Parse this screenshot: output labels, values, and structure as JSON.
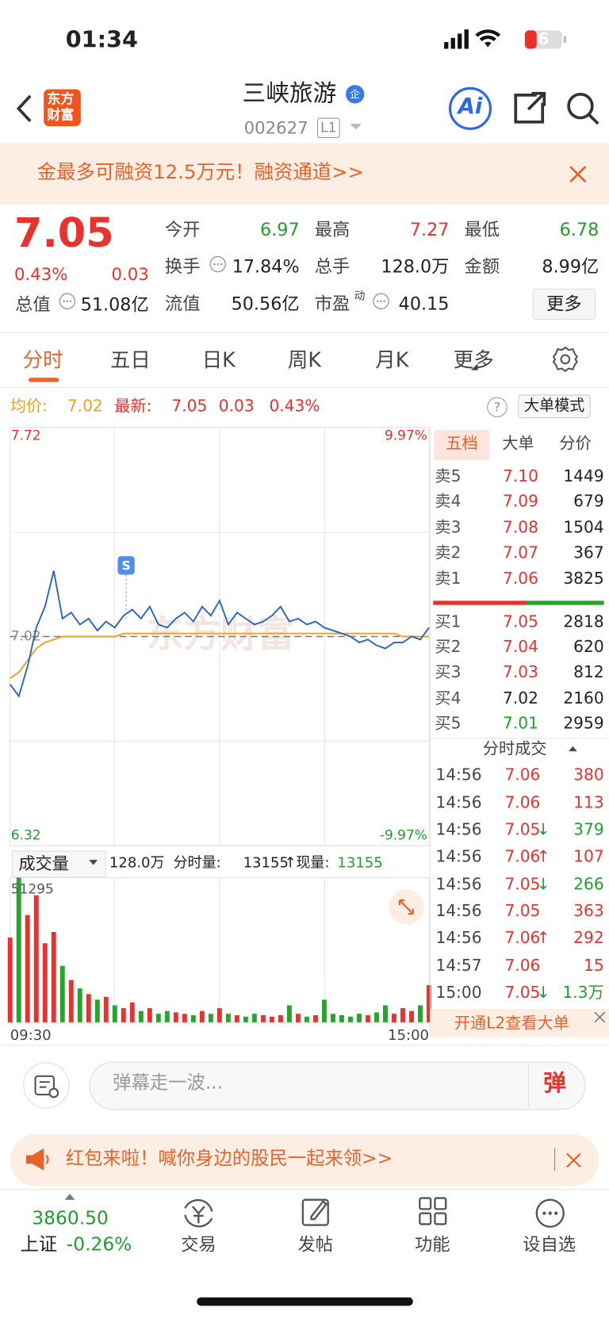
{
  "status_bar": {
    "time": "01:34",
    "battery": "6"
  },
  "header": {
    "logo": [
      "东方",
      "财富"
    ],
    "title": "三峡旅游",
    "badge": "企",
    "code": "002627",
    "level": "L1",
    "ai": "Ai"
  },
  "banner": {
    "text": "金最多可融资12.5万元！融资通道>>"
  },
  "quote": {
    "price": "7.05",
    "change_pct": "0.43%",
    "change": "0.03",
    "total_value": {
      "label": "总值",
      "value": "51.08亿"
    },
    "stats": [
      {
        "label": "今开",
        "value": "6.97",
        "color": "#1f9e2c"
      },
      {
        "label": "最高",
        "value": "7.27",
        "color": "#e8322e"
      },
      {
        "label": "最低",
        "value": "6.78",
        "color": "#1f9e2c"
      },
      {
        "label": "换手",
        "value": "17.84%",
        "color": "#222222"
      },
      {
        "label": "总手",
        "value": "128.0万",
        "color": "#222222"
      },
      {
        "label": "金额",
        "value": "8.99亿",
        "color": "#222222"
      },
      {
        "label": "流值",
        "value": "50.56亿",
        "color": "#222222"
      },
      {
        "label": "市盈",
        "sup": "动",
        "value": "40.15",
        "color": "#222222"
      }
    ],
    "more": "更多"
  },
  "tabs": [
    "分时",
    "五日",
    "日K",
    "周K",
    "月K",
    "更多"
  ],
  "info_bar": {
    "avg_label": "均价:",
    "avg_value": "7.02",
    "latest_label": "最新:",
    "latest_value": "7.05",
    "latest_change": "0.03",
    "latest_pct": "0.43%",
    "help": "?",
    "big_order_mode": "大单模式"
  },
  "chart_data": [
    {
      "type": "line",
      "watermark": "东方财富",
      "annotation": "S",
      "series": [
        {
          "color": "#2a64c5",
          "values": [
            6.86,
            6.82,
            6.92,
            7.05,
            7.12,
            7.24,
            7.08,
            7.1,
            7.06,
            7.08,
            7.04,
            7.07,
            7.05,
            7.09,
            7.11,
            7.08,
            7.12,
            7.06,
            7.05,
            7.08,
            7.1,
            7.07,
            7.12,
            7.09,
            7.14,
            7.06,
            7.1,
            7.08,
            7.06,
            7.07,
            7.09,
            7.12,
            7.07,
            7.08,
            7.06,
            7.07,
            7.05,
            7.04,
            7.03,
            7.02,
            7.0,
            7.01,
            6.99,
            6.98,
            7.0,
            7.0,
            7.02,
            7.01,
            7.05
          ]
        },
        {
          "color": "#f0a21f",
          "values": [
            6.88,
            6.9,
            6.94,
            6.98,
            7.0,
            7.01,
            7.02,
            7.02,
            7.02,
            7.02,
            7.02,
            7.02,
            7.02,
            7.03,
            7.03,
            7.03,
            7.03,
            7.03,
            7.03,
            7.03,
            7.03,
            7.03,
            7.03,
            7.03,
            7.03,
            7.03,
            7.03,
            7.03,
            7.03,
            7.03,
            7.03,
            7.03,
            7.03,
            7.03,
            7.03,
            7.03,
            7.03,
            7.03,
            7.03,
            7.03,
            7.03,
            7.03,
            7.03,
            7.03,
            7.03,
            7.02,
            7.02,
            7.02,
            7.02
          ]
        }
      ],
      "ylim": [
        6.32,
        7.72
      ],
      "yticks": [
        7.72,
        7.02,
        6.32
      ],
      "y2lim": [
        -9.97,
        9.97
      ],
      "y2ticks": [
        {
          "value": 9.97,
          "label": "9.97%"
        },
        {
          "value": -9.97,
          "label": "-9.97%"
        }
      ]
    },
    {
      "type": "bar",
      "up_color": "#e8322e",
      "down_color": "#27a52a",
      "values": [
        30000,
        51295,
        38000,
        45000,
        28000,
        32000,
        20000,
        15000,
        12000,
        10000,
        8000,
        9000,
        6000,
        5000,
        7000,
        4000,
        5000,
        3000,
        4000,
        3500,
        3000,
        2500,
        4000,
        3000,
        5000,
        3000,
        2500,
        2000,
        3000,
        2500,
        2000,
        2500,
        6000,
        3000,
        2000,
        2500,
        8000,
        3000,
        2500,
        2000,
        3000,
        2500,
        3500,
        6000,
        3000,
        5000,
        4000,
        6000,
        13155
      ],
      "ylim": [
        0,
        51295
      ],
      "yticks": [
        51295
      ],
      "x_labels": [
        "09:30",
        "15:00"
      ]
    }
  ],
  "volume_header": {
    "selector": "成交量",
    "total": "128.0万",
    "period_label": "分时量:",
    "period_value": "13155",
    "arrow": "↑",
    "current_label": "现量:",
    "current_value": "13155"
  },
  "order_book": {
    "tabs": [
      "五档",
      "大单",
      "分价"
    ],
    "sell": [
      {
        "label": "卖5",
        "price": "7.10",
        "volume": "1449"
      },
      {
        "label": "卖4",
        "price": "7.09",
        "volume": "679"
      },
      {
        "label": "卖3",
        "price": "7.08",
        "volume": "1504"
      },
      {
        "label": "卖2",
        "price": "7.07",
        "volume": "367"
      },
      {
        "label": "卖1",
        "price": "7.06",
        "volume": "3825"
      }
    ],
    "buy": [
      {
        "label": "买1",
        "price": "7.05",
        "volume": "2818"
      },
      {
        "label": "买2",
        "price": "7.04",
        "volume": "620"
      },
      {
        "label": "买3",
        "price": "7.03",
        "volume": "812"
      },
      {
        "label": "买4",
        "price": "7.02",
        "volume": "2160"
      },
      {
        "label": "买5",
        "price": "7.01",
        "volume": "2959"
      }
    ],
    "trades_title": "分时成交",
    "trades": [
      {
        "time": "14:56",
        "price": "7.06",
        "volume": "380",
        "color": "#e8322e"
      },
      {
        "time": "14:56",
        "price": "7.06",
        "volume": "113",
        "color": "#e8322e"
      },
      {
        "time": "14:56",
        "price": "7.05",
        "arrow": "↓",
        "volume": "379",
        "color": "#1f9e2c"
      },
      {
        "time": "14:56",
        "price": "7.06",
        "arrow": "↑",
        "volume": "107",
        "color": "#e8322e"
      },
      {
        "time": "14:56",
        "price": "7.05",
        "arrow": "↓",
        "volume": "266",
        "color": "#1f9e2c"
      },
      {
        "time": "14:56",
        "price": "7.05",
        "volume": "363",
        "color": "#e8322e"
      },
      {
        "time": "14:56",
        "price": "7.06",
        "arrow": "↑",
        "volume": "292",
        "color": "#e8322e"
      },
      {
        "time": "14:57",
        "price": "7.06",
        "volume": "15",
        "color": "#e8322e"
      },
      {
        "time": "15:00",
        "price": "7.05",
        "arrow": "↓",
        "volume": "1.3万",
        "color": "#1f9e2c"
      }
    ],
    "l2_promo": "开通L2查看大单"
  },
  "comment_bar": {
    "placeholder": "弹幕走一波...",
    "button": "弹"
  },
  "promo": {
    "text": "红包来啦！喊你身边的股民一起来领>>"
  },
  "bottom_nav": {
    "index": {
      "value": "3860.50",
      "name": "上证",
      "change": "-0.26%"
    },
    "items": [
      "交易",
      "发帖",
      "功能",
      "设自选"
    ]
  }
}
